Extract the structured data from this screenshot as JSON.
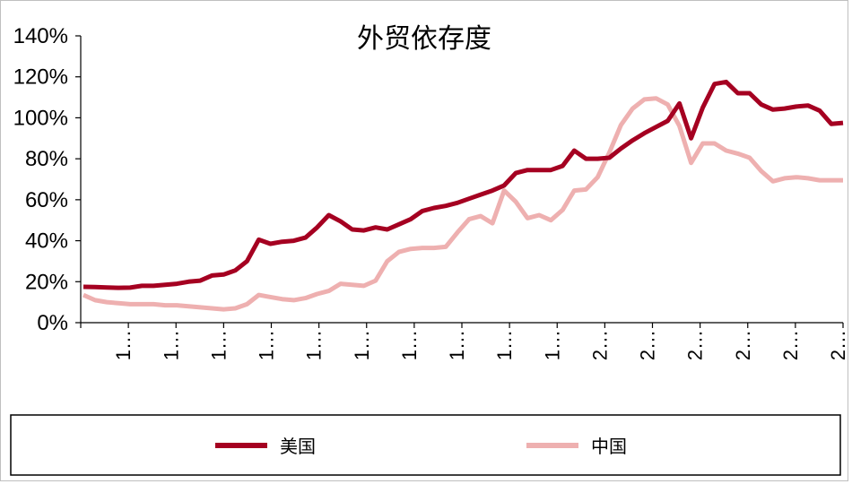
{
  "chart_data": {
    "type": "line",
    "title": "外贸依存度",
    "xlabel": "",
    "ylabel": "",
    "ylim": [
      0,
      140
    ],
    "y_ticks": [
      "0%",
      "20%",
      "40%",
      "60%",
      "80%",
      "100%",
      "120%",
      "140%"
    ],
    "x_tick_labels": [
      "1…",
      "1…",
      "1…",
      "1…",
      "1…",
      "1…",
      "1…",
      "1…",
      "1…",
      "1…",
      "2…",
      "2…",
      "2…",
      "2…",
      "2…",
      "2…"
    ],
    "grid": false,
    "legend_position": "bottom",
    "points_count": 66,
    "series": [
      {
        "name": "美国",
        "color": "#a50021",
        "values": [
          17.5,
          17.4,
          17.2,
          17.0,
          17.1,
          18.0,
          18.0,
          18.5,
          19.0,
          20.0,
          20.5,
          23.0,
          23.5,
          25.5,
          30.0,
          40.5,
          38.5,
          39.5,
          40.0,
          41.5,
          46.5,
          52.5,
          49.5,
          45.5,
          45.0,
          46.5,
          45.5,
          48.0,
          50.5,
          54.5,
          56.0,
          57.0,
          58.5,
          60.5,
          62.5,
          64.5,
          67.0,
          73.0,
          74.5,
          74.5,
          74.5,
          76.5,
          84.0,
          80.0,
          80.0,
          80.5,
          85.0,
          89.0,
          92.5,
          95.5,
          98.5,
          107.0,
          90.0,
          105.0,
          116.5,
          117.5,
          112.0,
          112.0,
          106.5,
          104.0,
          104.5,
          105.5,
          106.0,
          103.5,
          97.0,
          97.5
        ],
        "label_visible": true
      },
      {
        "name": "中国",
        "color": "#eeb0b0",
        "values": [
          13.5,
          11.0,
          10.0,
          9.5,
          9.0,
          9.0,
          9.0,
          8.5,
          8.5,
          8.0,
          7.5,
          7.0,
          6.5,
          7.0,
          9.0,
          13.5,
          12.5,
          11.5,
          11.0,
          12.0,
          14.0,
          15.5,
          19.0,
          18.5,
          18.0,
          20.5,
          30.0,
          34.5,
          36.0,
          36.5,
          36.5,
          37.0,
          44.0,
          50.5,
          52.0,
          48.5,
          64.5,
          59.0,
          51.0,
          52.5,
          50.0,
          55.0,
          64.5,
          65.0,
          71.0,
          83.0,
          96.5,
          104.5,
          109.0,
          109.5,
          106.5,
          96.0,
          78.0,
          87.5,
          87.5,
          84.0,
          82.5,
          80.5,
          74.0,
          69.0,
          70.5,
          71.0,
          70.5,
          69.5,
          69.5,
          69.5
        ]
      }
    ]
  }
}
